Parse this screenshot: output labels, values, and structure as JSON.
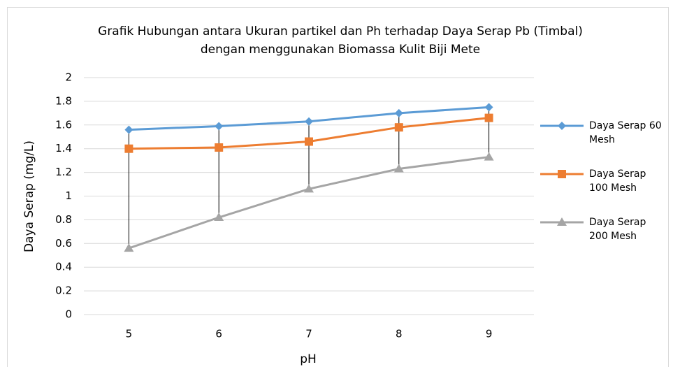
{
  "chart_data": {
    "type": "line",
    "title": "Grafik Hubungan antara Ukuran partikel dan Ph terhadap Daya Serap Pb (Timbal) dengan menggunakan Biomassa Kulit Biji Mete",
    "x_label": "pH",
    "y_label": "Daya Serap (mg/L)",
    "categories": [
      "5",
      "6",
      "7",
      "8",
      "9"
    ],
    "series": [
      {
        "name": "Daya Serap 60 Mesh",
        "color": "#5b9bd5",
        "marker": "diamond",
        "values": [
          1.56,
          1.59,
          1.63,
          1.7,
          1.75
        ]
      },
      {
        "name": "Daya Serap 100 Mesh",
        "color": "#ed7d31",
        "marker": "square",
        "values": [
          1.4,
          1.41,
          1.46,
          1.58,
          1.66
        ]
      },
      {
        "name": "Daya Serap 200 Mesh",
        "color": "#a5a5a5",
        "marker": "triangle",
        "values": [
          0.56,
          0.82,
          1.06,
          1.23,
          1.33
        ]
      }
    ],
    "ylim": [
      0,
      2
    ],
    "yticks": [
      0,
      0.2,
      0.4,
      0.6,
      0.8,
      1,
      1.2,
      1.4,
      1.6,
      1.8,
      2
    ],
    "grid": true,
    "drop_lines": true,
    "legend": "right"
  }
}
